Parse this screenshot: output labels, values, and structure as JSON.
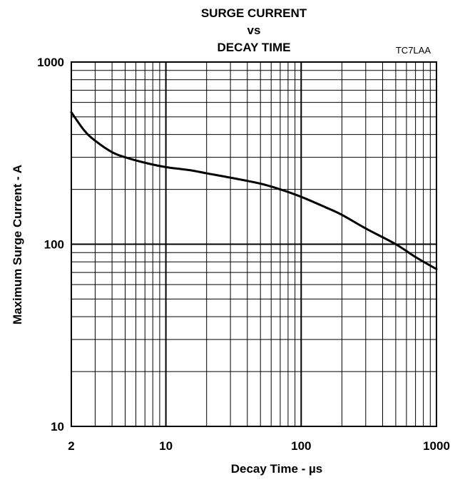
{
  "chart_data": {
    "type": "line",
    "title_lines": [
      "SURGE CURRENT",
      "vs",
      "DECAY TIME"
    ],
    "figure_code": "TC7LAA",
    "xlabel": "Decay Time - µs",
    "ylabel": "Maximum Surge Current - A",
    "x_scale": "log",
    "y_scale": "log",
    "xlim": [
      2,
      1000
    ],
    "ylim": [
      10,
      1000
    ],
    "x_ticks": [
      {
        "value": 2,
        "label": "2"
      },
      {
        "value": 10,
        "label": "10"
      },
      {
        "value": 100,
        "label": "100"
      },
      {
        "value": 1000,
        "label": "1000"
      }
    ],
    "y_ticks": [
      {
        "value": 10,
        "label": "10"
      },
      {
        "value": 100,
        "label": "100"
      },
      {
        "value": 1000,
        "label": "1000"
      }
    ],
    "grid": true,
    "series": [
      {
        "x": [
          2,
          2.5,
          3,
          4,
          5,
          7,
          10,
          15,
          20,
          30,
          50,
          70,
          100,
          150,
          200,
          300,
          500,
          700,
          1000
        ],
        "y": [
          530,
          420,
          370,
          320,
          300,
          280,
          265,
          255,
          245,
          232,
          215,
          200,
          182,
          160,
          145,
          122,
          100,
          85,
          73
        ]
      }
    ]
  }
}
